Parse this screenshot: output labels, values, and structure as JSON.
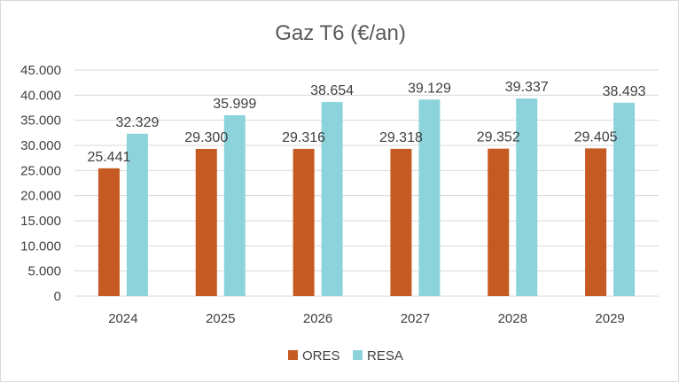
{
  "chart_data": {
    "type": "bar",
    "title": "Gaz T6 (€/an)",
    "categories": [
      "2024",
      "2025",
      "2026",
      "2027",
      "2028",
      "2029"
    ],
    "series": [
      {
        "name": "ORES",
        "color": "#c55a22",
        "values": [
          25441,
          29300,
          29316,
          29318,
          29352,
          29405
        ],
        "labels": [
          "25.441",
          "29.300",
          "29.316",
          "29.318",
          "29.352",
          "29.405"
        ]
      },
      {
        "name": "RESA",
        "color": "#8dd3dc",
        "values": [
          32329,
          35999,
          38654,
          39129,
          39337,
          38493
        ],
        "labels": [
          "32.329",
          "35.999",
          "38.654",
          "39.129",
          "39.337",
          "38.493"
        ]
      }
    ],
    "ylim": [
      0,
      45000
    ],
    "yticks": [
      0,
      5000,
      10000,
      15000,
      20000,
      25000,
      30000,
      35000,
      40000,
      45000
    ],
    "ytick_labels": [
      "0",
      "5.000",
      "10.000",
      "15.000",
      "20.000",
      "25.000",
      "30.000",
      "35.000",
      "40.000",
      "45.000"
    ],
    "grid": true,
    "legend_position": "bottom-center",
    "xlabel": "",
    "ylabel": ""
  }
}
